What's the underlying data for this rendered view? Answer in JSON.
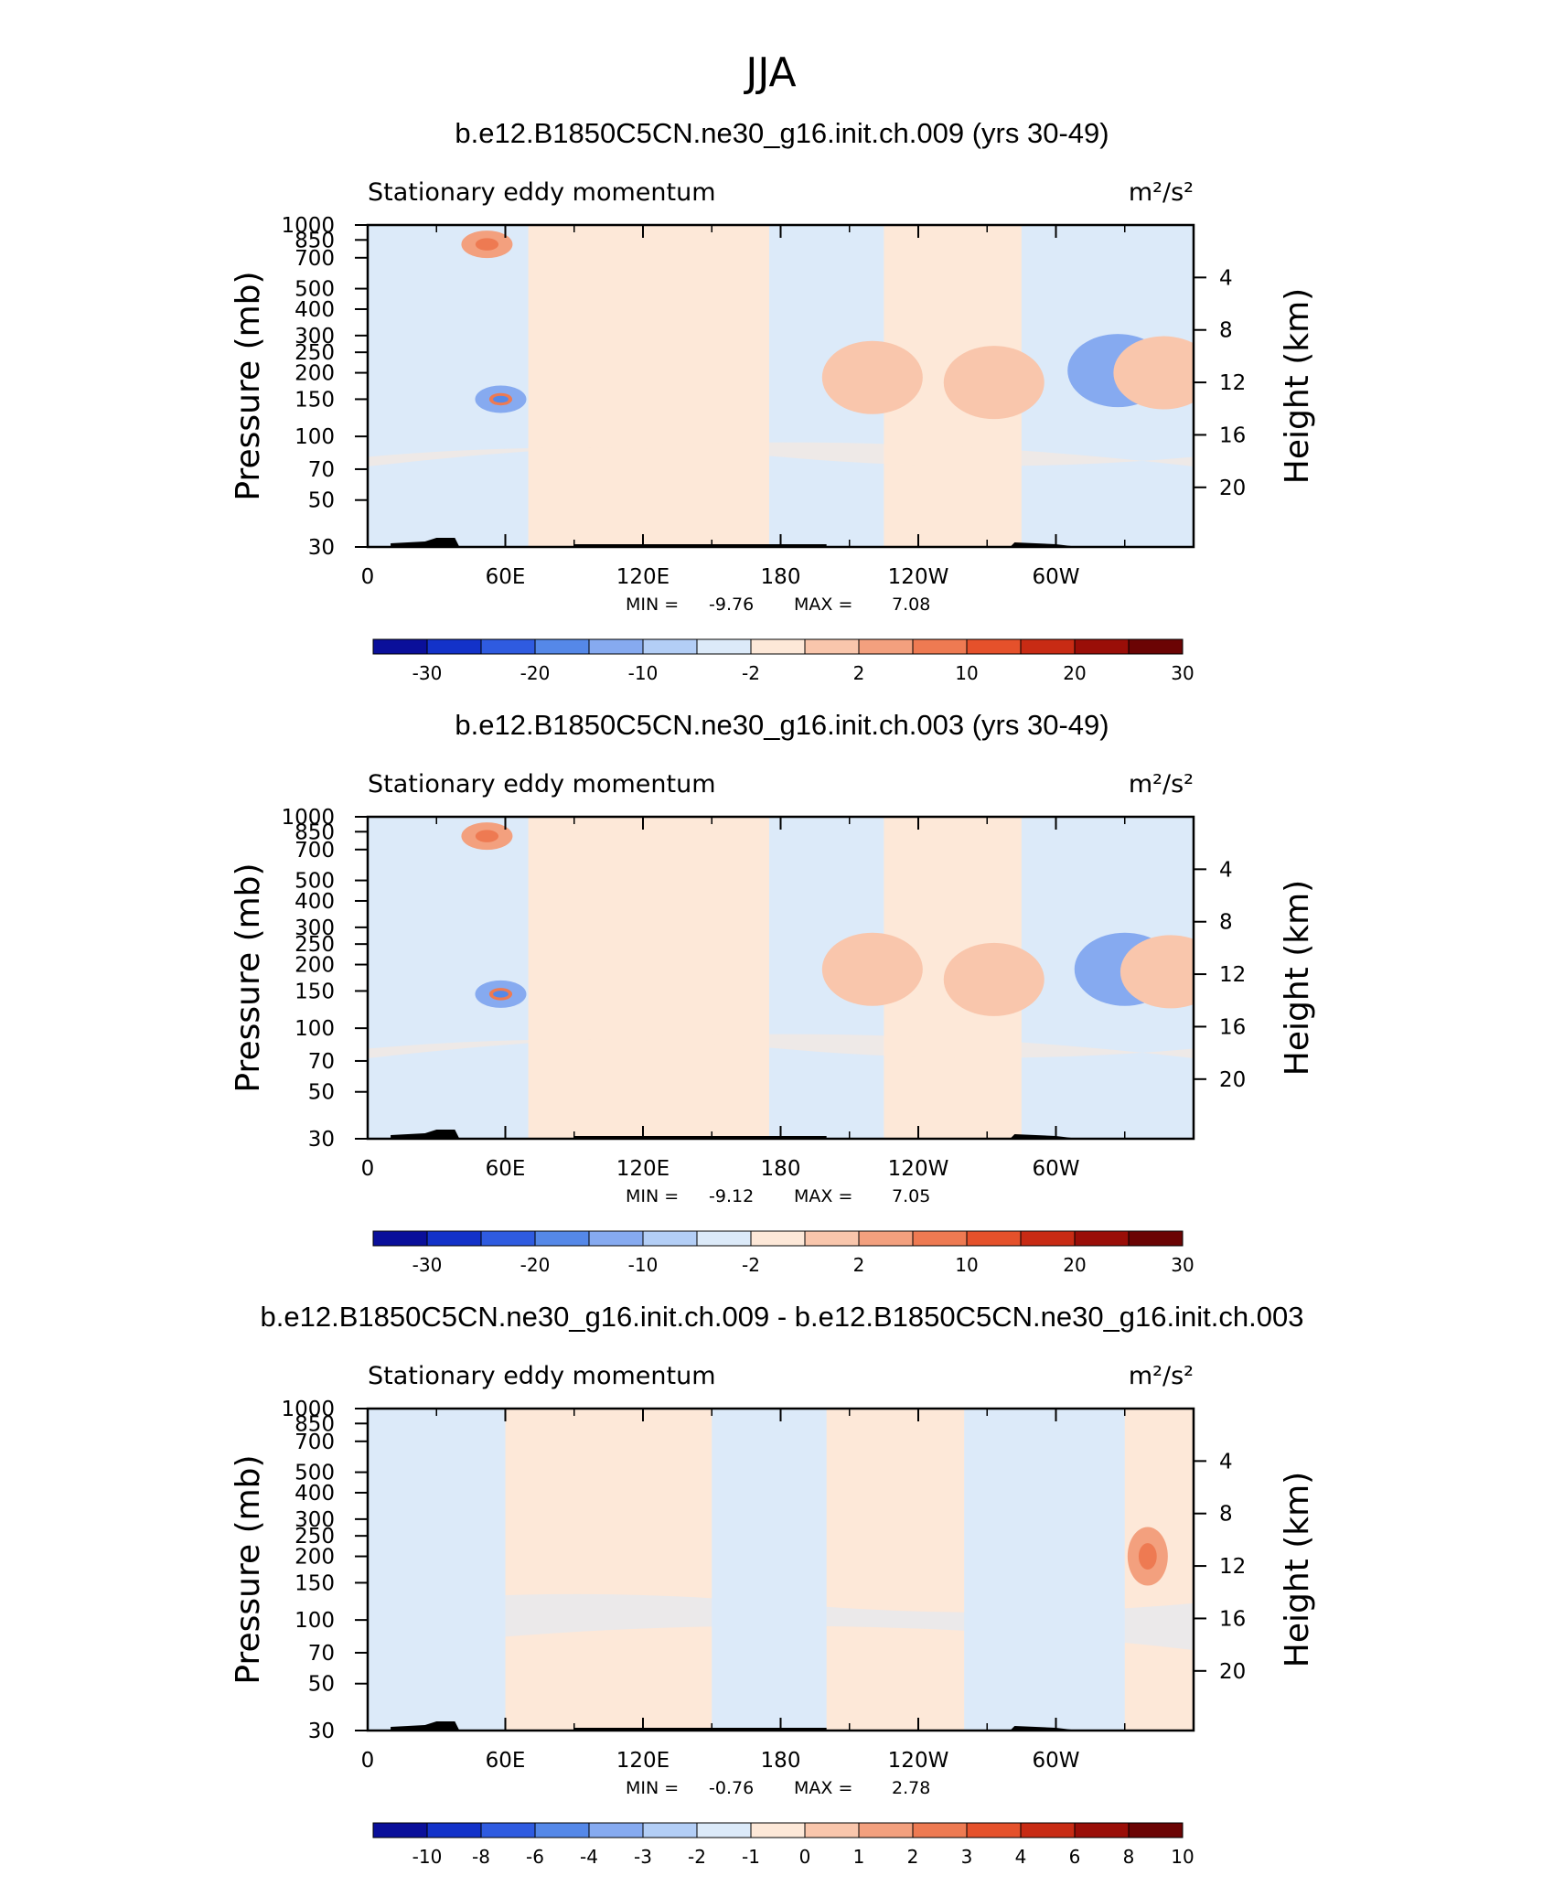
{
  "page_title": "JJA",
  "colors": {
    "palette": [
      "#0a0f9a",
      "#1332c9",
      "#2f5be0",
      "#5588e8",
      "#86aaf0",
      "#b3cef6",
      "#dceaf9",
      "#fde8d8",
      "#f9c6ac",
      "#f3a07e",
      "#ee7a52",
      "#e5512b",
      "#c82b14",
      "#9a0e08",
      "#6b0404"
    ],
    "terrain": "#000000"
  },
  "x_ticks": [
    "0",
    "60E",
    "120E",
    "180",
    "120W",
    "60W"
  ],
  "pressure_ticks": [
    "30",
    "50",
    "70",
    "100",
    "150",
    "200",
    "250",
    "300",
    "400",
    "500",
    "700",
    "850",
    "1000"
  ],
  "height_ticks": [
    "20",
    "16",
    "12",
    "8",
    "4"
  ],
  "left_axis_label": "Pressure  (mb)",
  "right_axis_label": "Height  (km)",
  "min_label": "MIN =",
  "max_label": "MAX =",
  "chart_data": [
    {
      "type": "heatmap",
      "title": "b.e12.B1850C5CN.ne30_g16.init.ch.009 (yrs 30-49)",
      "variable": "Stationary eddy momentum",
      "units": "m²/s²",
      "xlabel": "",
      "ylabel": "Pressure  (mb)",
      "y2label": "Height  (km)",
      "xlim": [
        0,
        360
      ],
      "ylim": [
        1000,
        30
      ],
      "y_scale": "log",
      "min": "-9.76",
      "max": "7.08",
      "colorbar_labels": [
        "-30",
        "-20",
        "-10",
        "-2",
        "2",
        "10",
        "20",
        "30"
      ],
      "features": [
        {
          "lon": 58,
          "p": 150,
          "value": -7
        },
        {
          "lon": 220,
          "p": 190,
          "value": 4
        },
        {
          "lon": 273,
          "p": 180,
          "value": 4
        },
        {
          "lon": 327,
          "p": 205,
          "value": -5
        },
        {
          "lon": 347,
          "p": 200,
          "value": 4
        },
        {
          "lon": 52,
          "p": 810,
          "value": 6
        }
      ]
    },
    {
      "type": "heatmap",
      "title": "b.e12.B1850C5CN.ne30_g16.init.ch.003 (yrs 30-49)",
      "variable": "Stationary eddy momentum",
      "units": "m²/s²",
      "xlabel": "",
      "ylabel": "Pressure  (mb)",
      "y2label": "Height  (km)",
      "xlim": [
        0,
        360
      ],
      "ylim": [
        1000,
        30
      ],
      "y_scale": "log",
      "min": "-9.12",
      "max": "7.05",
      "colorbar_labels": [
        "-30",
        "-20",
        "-10",
        "-2",
        "2",
        "10",
        "20",
        "30"
      ],
      "features": [
        {
          "lon": 58,
          "p": 145,
          "value": -7
        },
        {
          "lon": 220,
          "p": 190,
          "value": 4
        },
        {
          "lon": 273,
          "p": 170,
          "value": 4
        },
        {
          "lon": 330,
          "p": 190,
          "value": -5
        },
        {
          "lon": 350,
          "p": 185,
          "value": 3
        },
        {
          "lon": 52,
          "p": 810,
          "value": 6
        }
      ]
    },
    {
      "type": "heatmap",
      "title": "b.e12.B1850C5CN.ne30_g16.init.ch.009 - b.e12.B1850C5CN.ne30_g16.init.ch.003",
      "variable": "Stationary eddy momentum",
      "units": "m²/s²",
      "xlabel": "",
      "ylabel": "Pressure  (mb)",
      "y2label": "Height  (km)",
      "xlim": [
        0,
        360
      ],
      "ylim": [
        1000,
        30
      ],
      "y_scale": "log",
      "min": "-0.76",
      "max": "2.78",
      "colorbar_labels": [
        "-10",
        "-8",
        "-6",
        "-4",
        "-3",
        "-2",
        "-1",
        "0",
        "1",
        "2",
        "3",
        "4",
        "6",
        "8",
        "10"
      ],
      "features": [
        {
          "lon": 340,
          "p": 200,
          "value": 2.78
        }
      ]
    }
  ]
}
